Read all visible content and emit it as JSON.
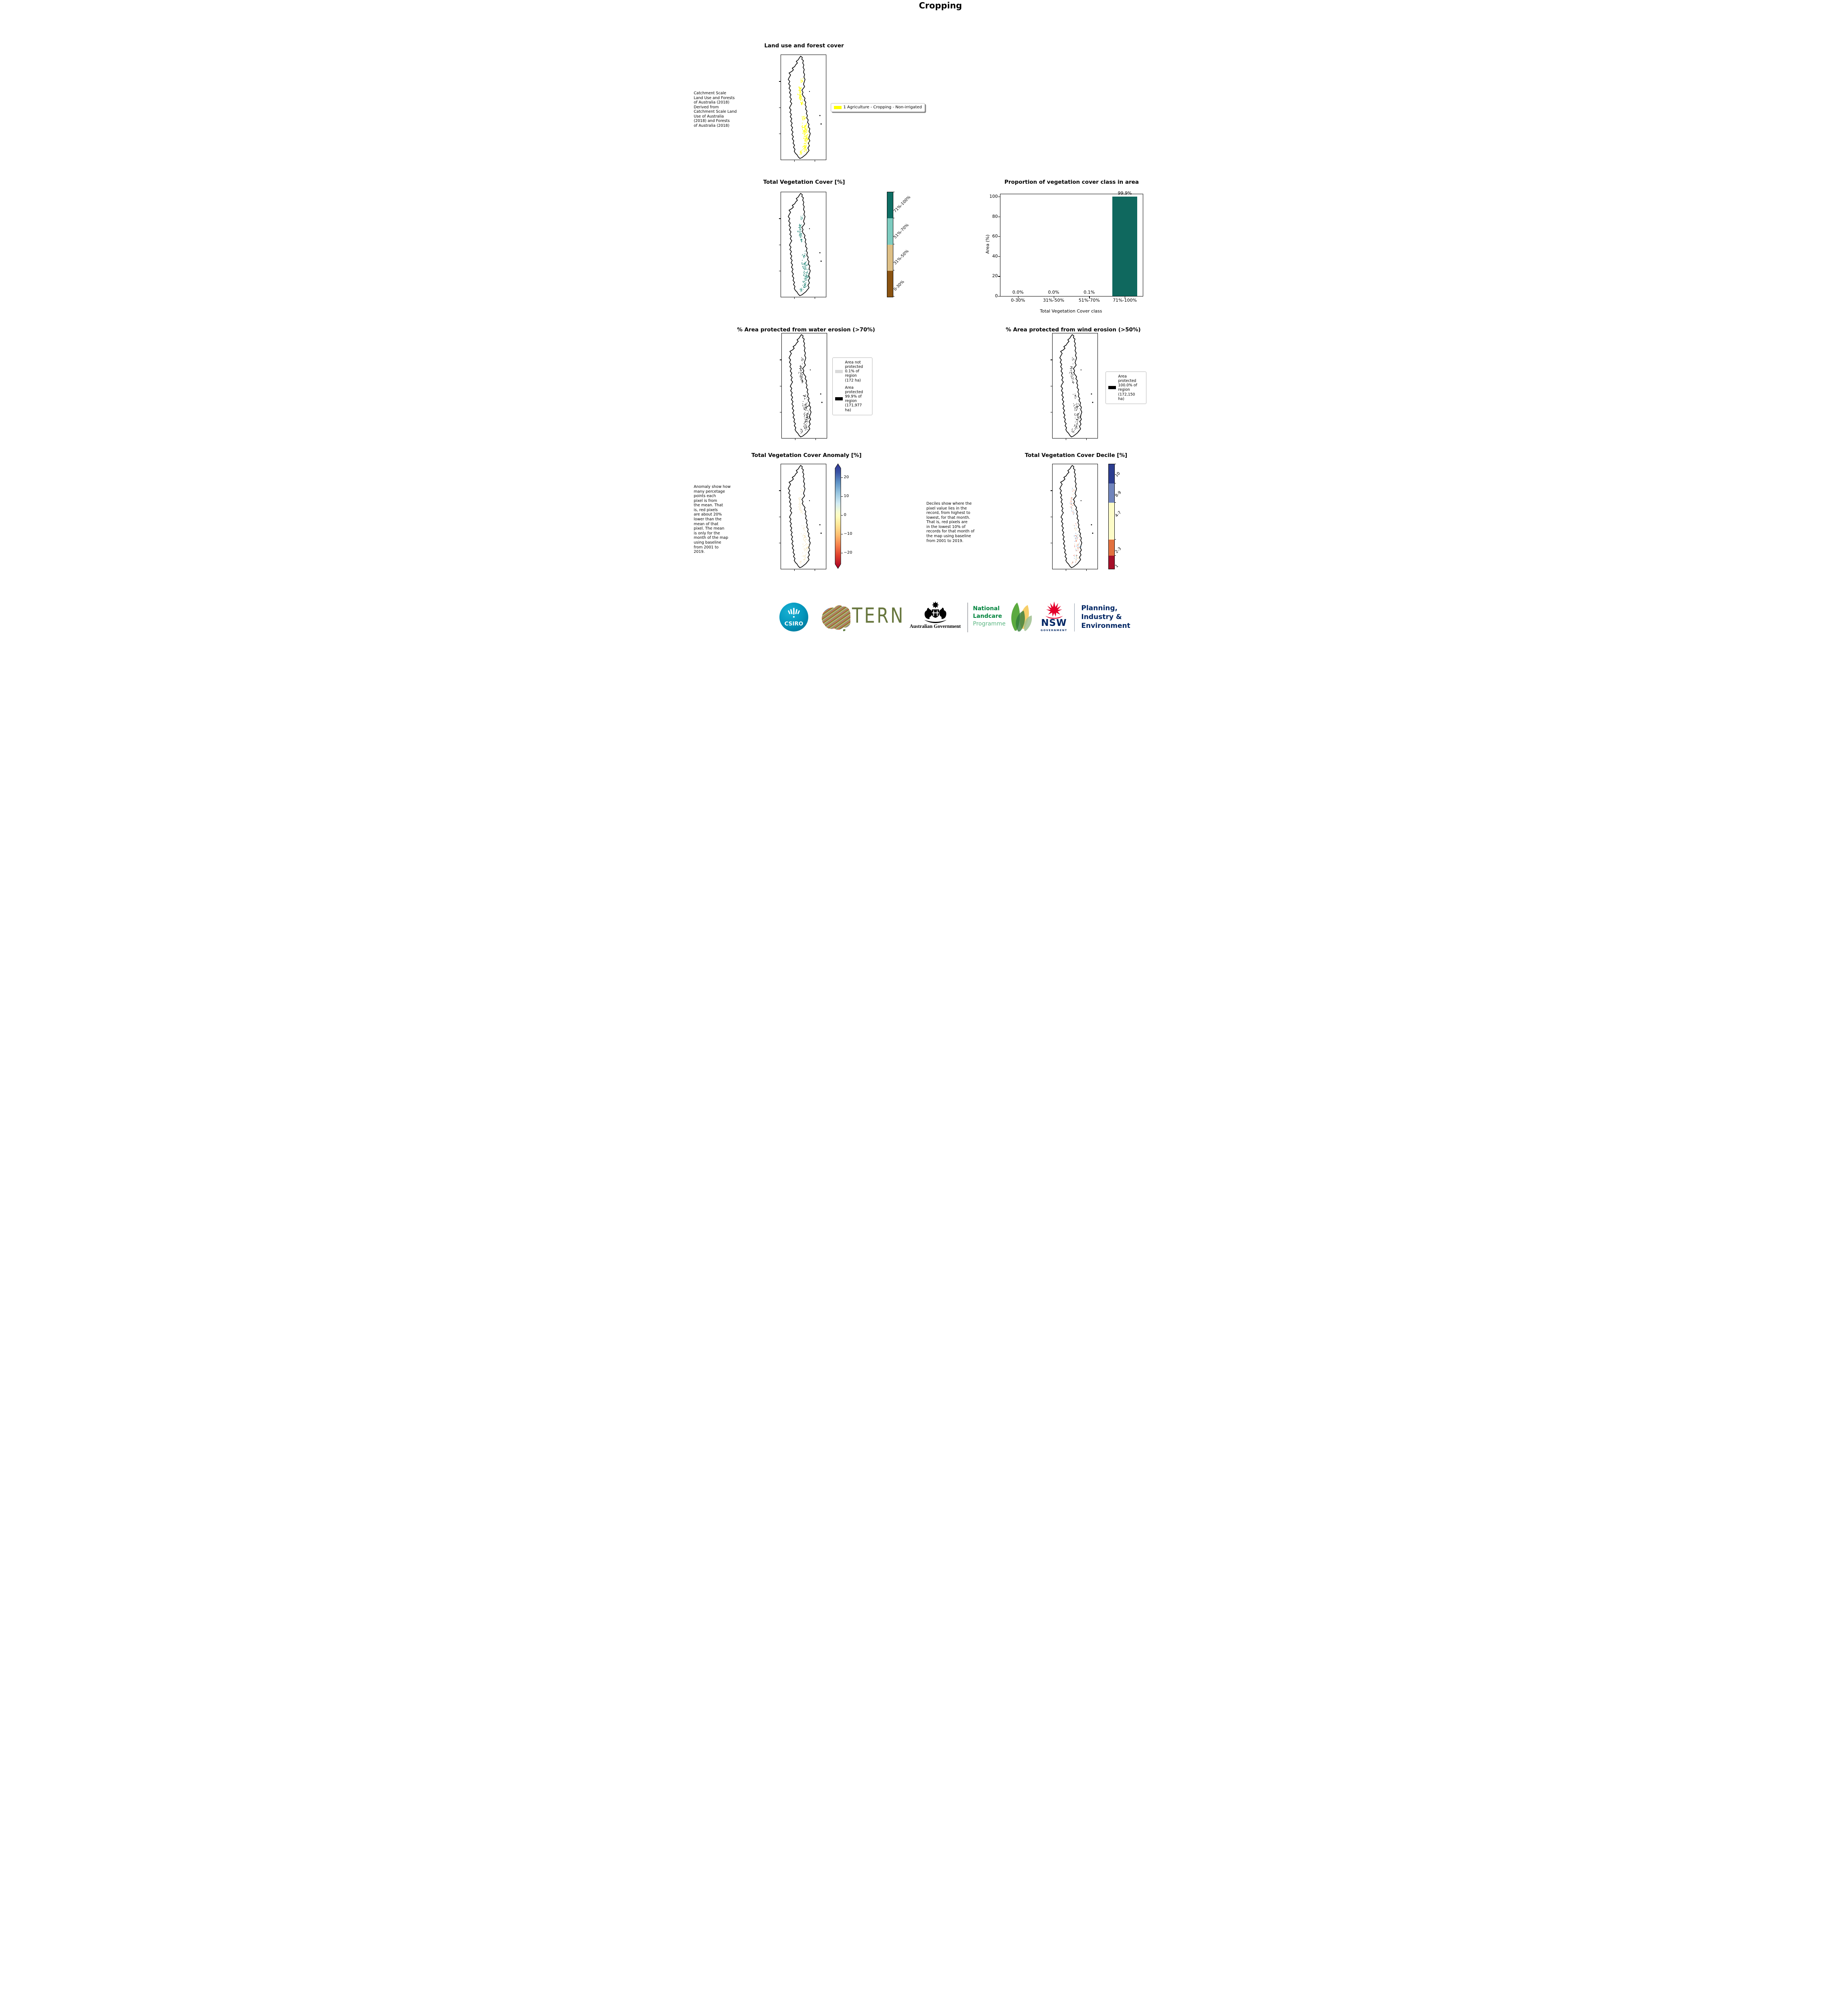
{
  "page_title": "Cropping",
  "panels": {
    "landuse": {
      "title": "Land use and forest cover",
      "note": " Catchment Scale\nLand Use and Forests\nof Australia (2018)\nDerived from\nCatchment Scale Land\nUse of Australia\n(2018) and Forests\nof Australia (2018)",
      "legend_label": "1 Agriculture - Cropping - Non-irrigated",
      "legend_color": "#ffff00",
      "map_colors": [
        "#ffff00"
      ]
    },
    "vegcover": {
      "title": "Total Vegetation Cover [%]",
      "map_colors": [
        "#177f70"
      ],
      "colorbar": [
        {
          "label": "71%-100%",
          "color": "#0e6e64"
        },
        {
          "label": "51%-70%",
          "color": "#7dcbbf"
        },
        {
          "label": "31%-50%",
          "color": "#ddbf86"
        },
        {
          "label": "0-30%",
          "color": "#8a5312"
        }
      ]
    },
    "water": {
      "title": "% Area protected from water erosion (>70%)",
      "map_colors": [
        "#000000"
      ],
      "legend": [
        {
          "label": "Area not\nprotected\n0.1% of\nregion\n(172 ha)",
          "color": "#d9d9d9"
        },
        {
          "label": "Area\nprotected\n99.9% of\nregion\n(171,977\nha)",
          "color": "#000000"
        }
      ]
    },
    "wind": {
      "title": "% Area protected from wind erosion (>50%)",
      "map_colors": [
        "#000000"
      ],
      "legend": [
        {
          "label": "Area\nprotected\n100.0% of\nregion\n(172,150\nha)",
          "color": "#000000"
        }
      ]
    },
    "anomaly": {
      "title": "Total Vegetation Cover Anomaly [%]",
      "note": "Anomaly show how\nmany percetage\npoints each\npixel is from\nthe mean. That\nis, red pixels\nare about 20%\nlower than the\nmean of that\npixel. The mean\nis only for the\nmonth of the map\nusing baseline\nfrom 2001 to\n2019.",
      "map_colors": [
        "#f2e3a0",
        "#f0d190",
        "#ead8ae"
      ],
      "colorbar_ticks": [
        "20",
        "10",
        "0",
        "−10",
        "−20"
      ]
    },
    "decile": {
      "title": "Total Vegetation Cover Decile [%]",
      "note": "Deciles show where the\npixel value lies in the\nrecord, from highest to\nlowest, for that month.\nThat is, red pixels are\nin the lowest 10% of\nrecords for that month of\nthe map using baseline\nfrom 2001 to 2019.",
      "map_colors": [
        "#d73027",
        "#f46d43",
        "#fdae61",
        "#74add1",
        "#4575b4",
        "#fee090"
      ],
      "colorbar": [
        {
          "label": "10",
          "color": "#2c3d8f"
        },
        {
          "label": "8-9",
          "color": "#7084bc"
        },
        {
          "label": "4-7",
          "color": "#fdfcc8"
        },
        {
          "label": "2-3",
          "color": "#e2713f"
        },
        {
          "label": "1",
          "color": "#a50f29"
        }
      ]
    }
  },
  "chart_data": {
    "type": "bar",
    "title": "Proportion of vegetation cover class in area",
    "categories": [
      "0-30%",
      "31%-50%",
      "51%-70%",
      "71%-100%"
    ],
    "values": [
      0.0,
      0.0,
      0.1,
      99.9
    ],
    "value_labels": [
      "0.0%",
      "0.0%",
      "0.1%",
      "99.9%"
    ],
    "xlabel": "Total Vegetation Cover class",
    "ylabel": "Area (%)",
    "ylim": [
      0,
      100
    ],
    "yticks": [
      0,
      20,
      40,
      60,
      80,
      100
    ],
    "bar_color": "#0f685e",
    "grid": false,
    "legend_position": "none"
  },
  "footer": {
    "csiro": {
      "label": "CSIRO",
      "color": "#00a0c6"
    },
    "tern": {
      "label": "TERN",
      "color": "#67763d",
      "stripe_colors": [
        "#d9672b",
        "#5b7a3c",
        "#4472a8",
        "#b5c4a5",
        "#e0a32e"
      ]
    },
    "ausgov": {
      "label": "Australian Government"
    },
    "landcare": {
      "lines": [
        "National",
        "Landcare",
        "Programme"
      ],
      "color": "#00843d",
      "light_color": "#57b47f",
      "leaf_colors": [
        "#4da32f",
        "#f5c54d",
        "#2f7a3a",
        "#9fbf8f"
      ]
    },
    "nsw": {
      "label": "NSW",
      "sub": "GOVERNMENT",
      "color": "#002664",
      "waratah_color": "#e4002b"
    },
    "planning": {
      "lines": [
        "Planning,",
        "Industry &",
        "Environment"
      ],
      "color": "#002664"
    }
  }
}
